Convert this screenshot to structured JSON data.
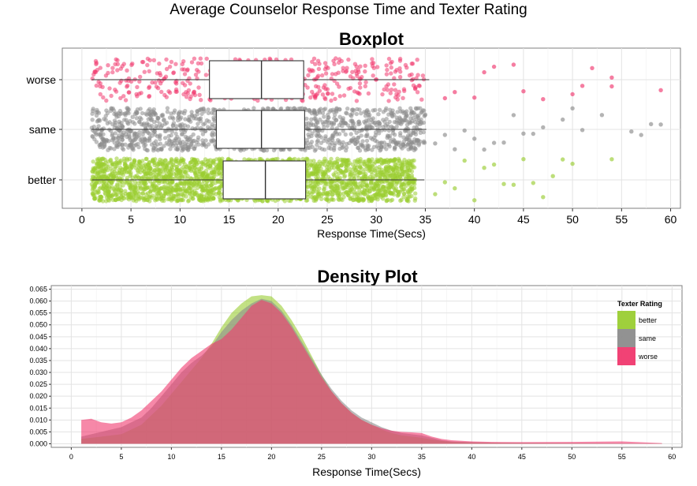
{
  "title": "Average Counselor Response Time and Texter Rating",
  "colors": {
    "better": "#9acd32",
    "same": "#8c8c8c",
    "worse": "#f0386e"
  },
  "chart_data": [
    {
      "type": "box",
      "title": "Boxplot",
      "xlabel": "Response Time(Secs)",
      "ylabel": "",
      "xlim": [
        -2,
        61
      ],
      "xticks": [
        0,
        5,
        10,
        15,
        20,
        25,
        30,
        35,
        40,
        45,
        50,
        55,
        60
      ],
      "categories": [
        "worse",
        "same",
        "better"
      ],
      "grid": true,
      "series": [
        {
          "name": "worse",
          "min": 1,
          "q1": 13.0,
          "median": 18.3,
          "q3": 22.6,
          "whisker_hi": 35.4,
          "dense_max": 35,
          "outliers": [
            37,
            38,
            40,
            41,
            42,
            44,
            45,
            47,
            50,
            51,
            52,
            54,
            54,
            59
          ]
        },
        {
          "name": "same",
          "min": 1,
          "q1": 13.7,
          "median": 18.3,
          "q3": 22.7,
          "whisker_hi": 35.1,
          "dense_max": 35,
          "outliers": [
            36,
            37,
            38,
            39,
            40,
            41,
            42,
            43,
            44,
            45,
            46,
            47,
            49,
            50,
            51,
            53,
            56,
            57,
            58,
            59
          ]
        },
        {
          "name": "better",
          "min": 1,
          "q1": 14.4,
          "median": 18.7,
          "q3": 22.8,
          "whisker_hi": 34.9,
          "dense_max": 34,
          "outliers": [
            36,
            37,
            38,
            39,
            40,
            41,
            42,
            43,
            44,
            45,
            46,
            47,
            48,
            49,
            50,
            54
          ]
        }
      ]
    },
    {
      "type": "area",
      "title": "Density Plot",
      "xlabel": "Response Time(Secs)",
      "ylabel": "",
      "xlim": [
        -2,
        61
      ],
      "ylim": [
        -0.0015,
        0.0665
      ],
      "xticks": [
        0,
        5,
        10,
        15,
        20,
        25,
        30,
        35,
        40,
        45,
        50,
        55,
        60
      ],
      "yticks": [
        0.0,
        0.005,
        0.01,
        0.015,
        0.02,
        0.025,
        0.03,
        0.035,
        0.04,
        0.045,
        0.05,
        0.055,
        0.06,
        0.065
      ],
      "grid": true,
      "legend": {
        "title": "Texter Rating",
        "position": "top-right"
      },
      "x": [
        1,
        2,
        3,
        4,
        5,
        6,
        7,
        8,
        9,
        10,
        11,
        12,
        13,
        14,
        15,
        16,
        17,
        18,
        19,
        20,
        21,
        22,
        23,
        24,
        25,
        26,
        27,
        28,
        29,
        30,
        31,
        32,
        33,
        34,
        35,
        36,
        37,
        38,
        40,
        42,
        45,
        50,
        55,
        59
      ],
      "series": [
        {
          "name": "better",
          "values": [
            0.002,
            0.0025,
            0.003,
            0.0035,
            0.004,
            0.006,
            0.008,
            0.012,
            0.016,
            0.021,
            0.026,
            0.031,
            0.036,
            0.042,
            0.049,
            0.055,
            0.059,
            0.062,
            0.0625,
            0.062,
            0.058,
            0.052,
            0.045,
            0.037,
            0.029,
            0.022,
            0.017,
            0.013,
            0.01,
            0.008,
            0.006,
            0.0045,
            0.0035,
            0.003,
            0.0025,
            0.0018,
            0.0012,
            0.0008,
            0.0005,
            0.0004,
            0.0003,
            0.0002,
            0.0001,
            0.0001
          ]
        },
        {
          "name": "same",
          "values": [
            0.003,
            0.004,
            0.005,
            0.006,
            0.007,
            0.009,
            0.011,
            0.015,
            0.02,
            0.025,
            0.03,
            0.034,
            0.037,
            0.041,
            0.047,
            0.052,
            0.056,
            0.059,
            0.061,
            0.06,
            0.056,
            0.05,
            0.043,
            0.036,
            0.029,
            0.023,
            0.018,
            0.014,
            0.011,
            0.009,
            0.007,
            0.0055,
            0.0045,
            0.004,
            0.0035,
            0.0025,
            0.0015,
            0.001,
            0.0007,
            0.0005,
            0.0004,
            0.0003,
            0.0002,
            0.0001
          ]
        },
        {
          "name": "worse",
          "values": [
            0.01,
            0.0105,
            0.009,
            0.0085,
            0.009,
            0.011,
            0.014,
            0.018,
            0.022,
            0.027,
            0.032,
            0.036,
            0.039,
            0.042,
            0.044,
            0.048,
            0.053,
            0.058,
            0.0605,
            0.059,
            0.055,
            0.049,
            0.042,
            0.035,
            0.028,
            0.022,
            0.017,
            0.013,
            0.01,
            0.008,
            0.0065,
            0.0055,
            0.005,
            0.0048,
            0.0045,
            0.003,
            0.002,
            0.0015,
            0.001,
            0.0008,
            0.0007,
            0.0008,
            0.001,
            0.0003
          ]
        }
      ]
    }
  ]
}
